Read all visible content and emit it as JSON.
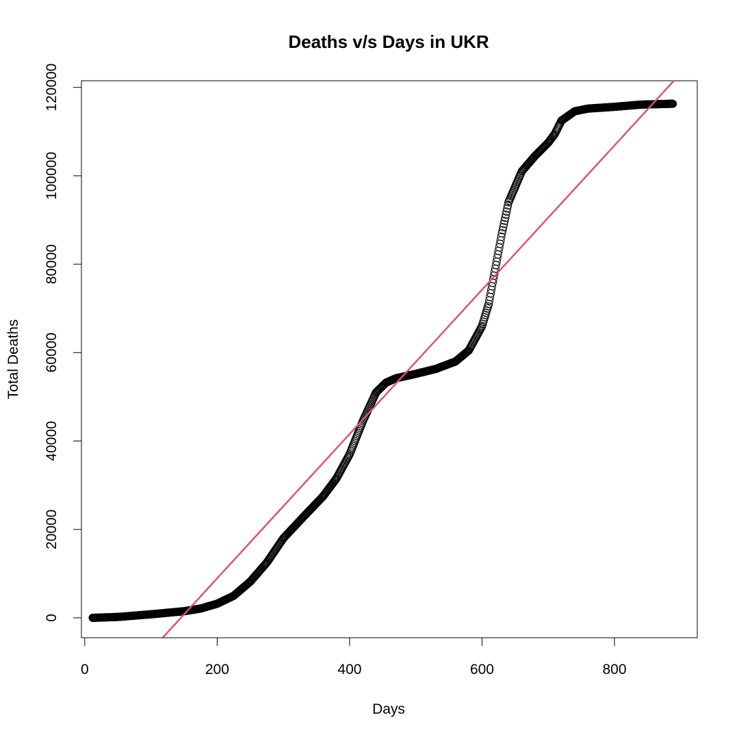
{
  "chart_data": {
    "type": "scatter",
    "title": "Deaths v/s Days in UKR",
    "xlabel": "Days",
    "ylabel": "Total Deaths",
    "xlim": [
      -5,
      925
    ],
    "ylim": [
      -4500,
      121500
    ],
    "x_ticks": [
      0,
      200,
      400,
      600,
      800
    ],
    "x_tick_labels": [
      "0",
      "200",
      "400",
      "600",
      "800"
    ],
    "y_ticks": [
      0,
      20000,
      40000,
      60000,
      80000,
      100000,
      120000
    ],
    "y_tick_labels": [
      "0",
      "20000",
      "40000",
      "60000",
      "80000",
      "100000",
      "120000"
    ],
    "grid": false,
    "series": [
      {
        "marker": "open-circle",
        "color": "#000000",
        "x_start": 12,
        "x_end": 888,
        "curve_knots": [
          [
            12,
            0
          ],
          [
            50,
            200
          ],
          [
            100,
            800
          ],
          [
            150,
            1500
          ],
          [
            175,
            2100
          ],
          [
            200,
            3200
          ],
          [
            225,
            5000
          ],
          [
            250,
            8200
          ],
          [
            275,
            12500
          ],
          [
            300,
            18000
          ],
          [
            330,
            22800
          ],
          [
            360,
            27500
          ],
          [
            380,
            31500
          ],
          [
            400,
            37000
          ],
          [
            420,
            44500
          ],
          [
            440,
            51000
          ],
          [
            455,
            53200
          ],
          [
            470,
            54200
          ],
          [
            500,
            55200
          ],
          [
            530,
            56300
          ],
          [
            560,
            58000
          ],
          [
            580,
            60500
          ],
          [
            600,
            66000
          ],
          [
            610,
            71000
          ],
          [
            620,
            79000
          ],
          [
            630,
            87000
          ],
          [
            640,
            94000
          ],
          [
            660,
            101000
          ],
          [
            680,
            104500
          ],
          [
            700,
            107500
          ],
          [
            710,
            109500
          ],
          [
            720,
            112500
          ],
          [
            740,
            114600
          ],
          [
            760,
            115200
          ],
          [
            800,
            115600
          ],
          [
            840,
            116100
          ],
          [
            888,
            116300
          ]
        ]
      },
      {
        "name": "regression-line",
        "type": "line",
        "color": "#DF536B",
        "slope": 163.2,
        "intercept": -23700
      }
    ]
  }
}
